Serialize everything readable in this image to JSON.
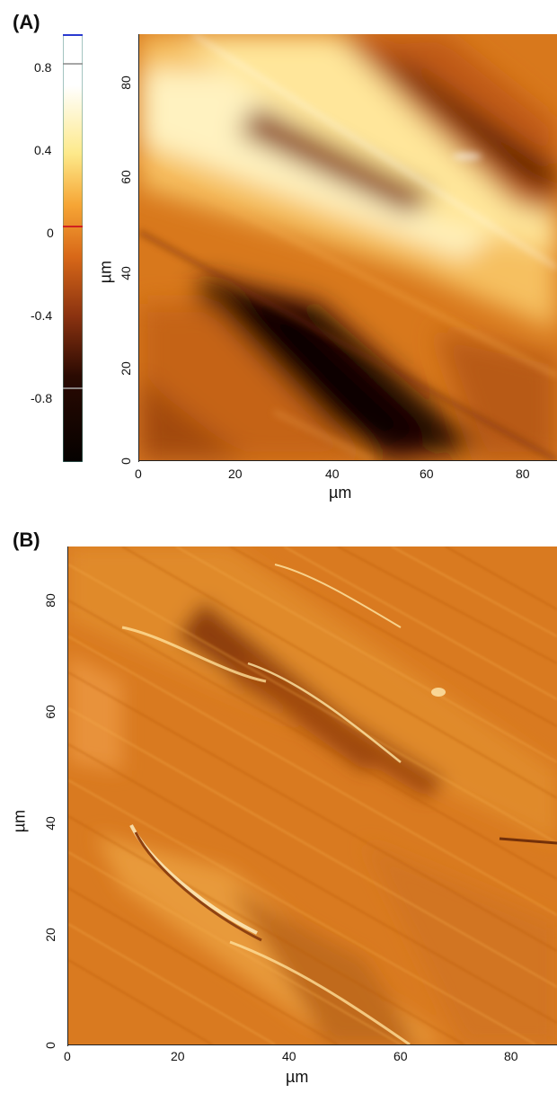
{
  "panels": [
    {
      "label": "(A)",
      "colorbar": {
        "ticks": [
          "0.8",
          "0.4",
          "0",
          "-0.4",
          "-0.8"
        ],
        "colors": [
          "#ffffff",
          "#fde98a",
          "#f59a2a",
          "#d06018",
          "#7a2a0a",
          "#120400"
        ]
      },
      "xlabel": "µm",
      "ylabel": "µm",
      "xticks": [
        "0",
        "20",
        "40",
        "60",
        "80"
      ],
      "yticks": [
        "0",
        "20",
        "40",
        "60",
        "80"
      ],
      "image": "AFM height map of fibrous surface"
    },
    {
      "label": "(B)",
      "xlabel": "µm",
      "ylabel": "µm",
      "xticks": [
        "0",
        "20",
        "40",
        "60",
        "80"
      ],
      "yticks": [
        "0",
        "20",
        "40",
        "60",
        "80"
      ],
      "image": "AFM amplitude/deflection map of fibrous surface"
    }
  ]
}
